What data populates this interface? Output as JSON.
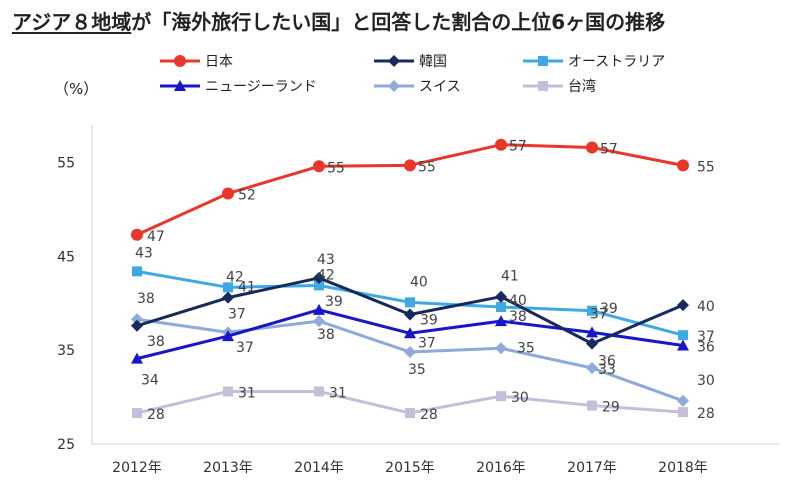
{
  "chart_data": {
    "type": "line",
    "title_underlined": "アジア８地域",
    "title_rest": "が「海外旅行したい国」と回答した割合の上位6ヶ国の推移",
    "unit": "（%）",
    "categories": [
      "2012年",
      "2013年",
      "2014年",
      "2015年",
      "2016年",
      "2017年",
      "2018年"
    ],
    "ylim": [
      25,
      59
    ],
    "yticks": [
      25,
      35,
      45,
      55
    ],
    "series": [
      {
        "name": "日本",
        "color": "#e8372a",
        "marker": "circle",
        "values": [
          47.3,
          51.7,
          54.6,
          54.7,
          56.9,
          56.6,
          54.7
        ],
        "labels": [
          "47",
          "52",
          "55",
          "55",
          "57",
          "57",
          "55"
        ]
      },
      {
        "name": "韓国",
        "color": "#172a5e",
        "marker": "diamond",
        "values": [
          37.6,
          40.6,
          42.7,
          38.8,
          40.7,
          35.7,
          39.8
        ],
        "labels": [
          "38",
          "41",
          "43",
          "39",
          "41",
          "36",
          "40"
        ]
      },
      {
        "name": "オーストラリア",
        "color": "#3fa9e6",
        "marker": "square",
        "values": [
          43.4,
          41.7,
          41.9,
          40.1,
          39.6,
          39.2,
          36.6
        ],
        "labels": [
          "43",
          "42",
          "42",
          "40",
          "40",
          "39",
          "37"
        ]
      },
      {
        "name": "ニュージーランド",
        "color": "#1717c9",
        "marker": "triangle",
        "values": [
          34.1,
          36.5,
          39.3,
          36.8,
          38.1,
          36.9,
          35.5
        ],
        "labels": [
          "34",
          "37",
          "39",
          "37",
          "38",
          "37",
          "36"
        ]
      },
      {
        "name": "スイス",
        "color": "#8fa9d9",
        "marker": "diamond",
        "values": [
          38.3,
          36.9,
          38.1,
          34.8,
          35.2,
          33.1,
          29.6
        ],
        "labels": [
          "38",
          "37",
          "38",
          "35",
          "35",
          "33",
          "30"
        ]
      },
      {
        "name": "台湾",
        "color": "#c4bfd9",
        "marker": "square",
        "values": [
          28.3,
          30.6,
          30.6,
          28.3,
          30.1,
          29.1,
          28.4
        ],
        "labels": [
          "28",
          "31",
          "31",
          "28",
          "30",
          "29",
          "28"
        ]
      }
    ]
  }
}
